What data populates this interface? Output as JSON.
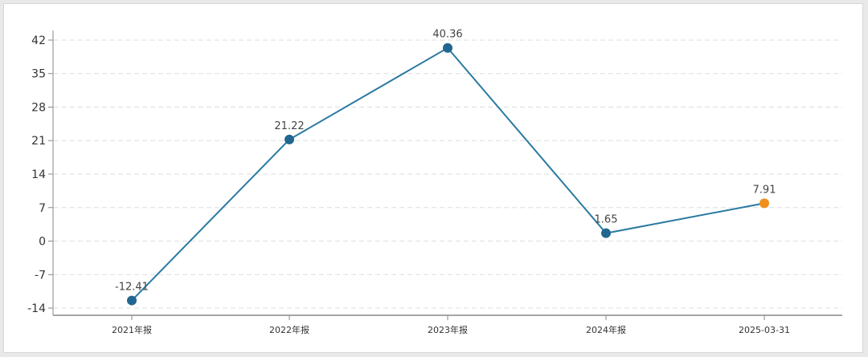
{
  "chart_data": {
    "type": "line",
    "categories": [
      "2021年报",
      "2022年报",
      "2023年报",
      "2024年报",
      "2025-03-31"
    ],
    "series": [
      {
        "values": [
          -12.41,
          21.22,
          40.36,
          1.65,
          7.91
        ]
      }
    ],
    "data_labels": [
      "-12.41",
      "21.22",
      "40.36",
      "1.65",
      "7.91"
    ],
    "yticks": [
      "42",
      "35",
      "28",
      "21",
      "14",
      "7",
      "0",
      "-7",
      "-14"
    ],
    "ytick_values": [
      42,
      35,
      28,
      21,
      14,
      7,
      0,
      -7,
      -14
    ],
    "ylim": [
      -15.5,
      43
    ],
    "grid": true,
    "colors": {
      "line": "#2b7aa1",
      "point": "#21678f",
      "highlight_point": "#f28e1c",
      "axis": "#888888",
      "grid": "#dddddd"
    }
  }
}
